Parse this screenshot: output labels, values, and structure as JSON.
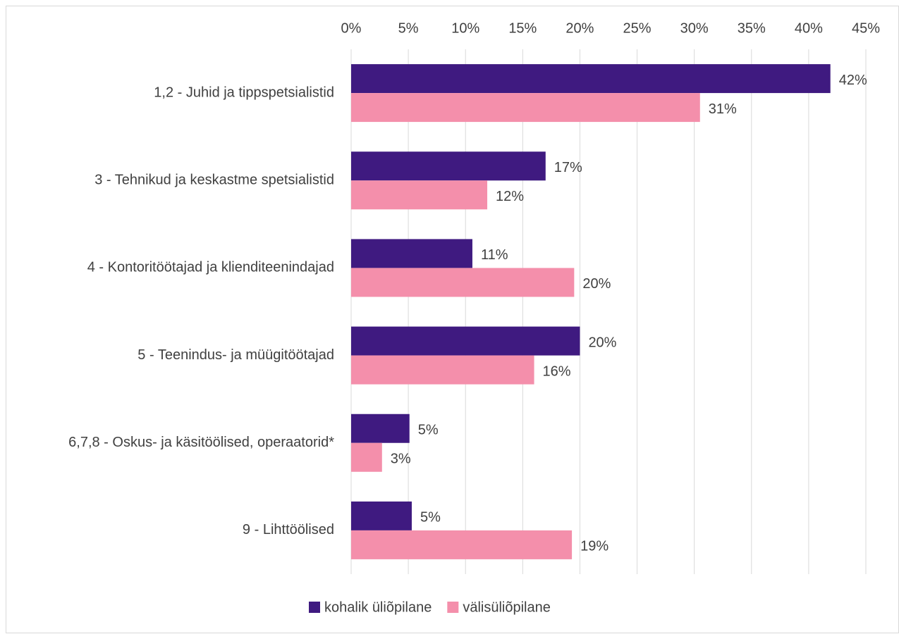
{
  "chart_data": {
    "type": "hbar",
    "categories": [
      "1,2 - Juhid ja tippspetsialistid",
      "3 - Tehnikud ja keskastme spetsialistid",
      "4 - Kontoritöötajad ja klienditeenindajad",
      "5 - Teenindus- ja müügitöötajad",
      "6,7,8 - Oskus- ja käsitöölised, operaatorid*",
      "9 - Lihttöölised"
    ],
    "series": [
      {
        "name": "kohalik üliõpilane",
        "color": "#3f1a80",
        "values": [
          41.9,
          17.0,
          10.6,
          20.0,
          5.1,
          5.3
        ],
        "value_labels": [
          "42%",
          "17%",
          "11%",
          "20%",
          "5%",
          "5%"
        ]
      },
      {
        "name": "välisüliõpilane",
        "color": "#f48fab",
        "values": [
          30.5,
          11.9,
          19.5,
          16.0,
          2.7,
          19.3
        ],
        "value_labels": [
          "31%",
          "12%",
          "20%",
          "16%",
          "3%",
          "19%"
        ]
      }
    ],
    "xlim": [
      0,
      45
    ],
    "xticks": [
      {
        "value": 0,
        "label": "0%"
      },
      {
        "value": 5,
        "label": "5%"
      },
      {
        "value": 10,
        "label": "10%"
      },
      {
        "value": 15,
        "label": "15%"
      },
      {
        "value": 20,
        "label": "20%"
      },
      {
        "value": 25,
        "label": "25%"
      },
      {
        "value": 30,
        "label": "30%"
      },
      {
        "value": 35,
        "label": "35%"
      },
      {
        "value": 40,
        "label": "40%"
      },
      {
        "value": 45,
        "label": "45%"
      }
    ],
    "grid": true,
    "legend": "bottom"
  }
}
